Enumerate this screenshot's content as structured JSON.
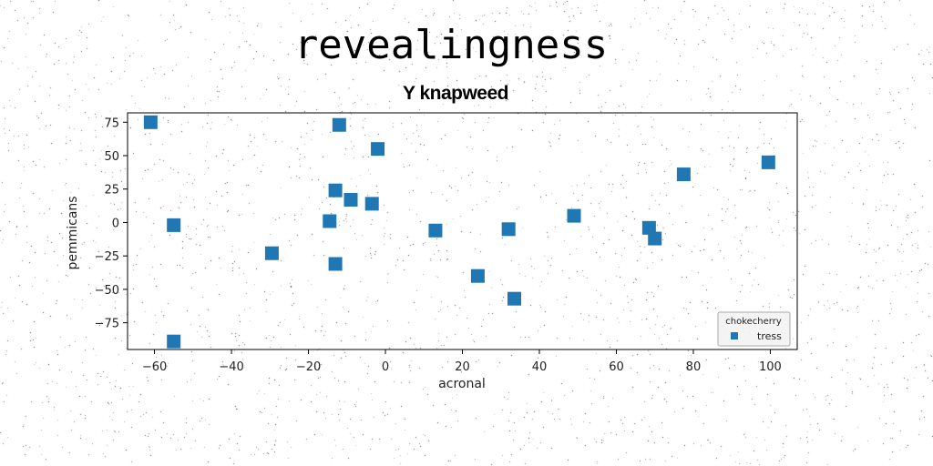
{
  "page": {
    "title": "revealingness"
  },
  "chart_data": {
    "type": "scatter",
    "title": "Y knapweed",
    "xlabel": "acronal",
    "ylabel": "pemmicans",
    "xlim": [
      -67,
      107
    ],
    "ylim": [
      -95,
      82
    ],
    "xticks": [
      -60,
      -40,
      -20,
      0,
      20,
      40,
      60,
      80,
      100
    ],
    "yticks": [
      75,
      50,
      25,
      0,
      -25,
      -50,
      -75
    ],
    "xtick_labels": [
      "−60",
      "−40",
      "−20",
      "0",
      "20",
      "40",
      "60",
      "80",
      "100"
    ],
    "ytick_labels": [
      "75",
      "50",
      "25",
      "0",
      "−25",
      "−50",
      "−75"
    ],
    "grid": false,
    "legend": {
      "title": "chokecherry",
      "placement": "bottom-right"
    },
    "series": [
      {
        "name": "tress",
        "color": "#1f77b4",
        "marker": "square",
        "points": [
          {
            "x": -61,
            "y": 75
          },
          {
            "x": -55,
            "y": -2
          },
          {
            "x": -55,
            "y": -89
          },
          {
            "x": -29.5,
            "y": -23
          },
          {
            "x": -14.5,
            "y": 1
          },
          {
            "x": -13,
            "y": 24
          },
          {
            "x": -13,
            "y": -31
          },
          {
            "x": -12,
            "y": 73
          },
          {
            "x": -9,
            "y": 17
          },
          {
            "x": -3.5,
            "y": 14
          },
          {
            "x": -2,
            "y": 55
          },
          {
            "x": 13,
            "y": -6
          },
          {
            "x": 24,
            "y": -40
          },
          {
            "x": 32,
            "y": -5
          },
          {
            "x": 33.5,
            "y": -57
          },
          {
            "x": 49,
            "y": 5
          },
          {
            "x": 68.5,
            "y": -4
          },
          {
            "x": 70,
            "y": -12
          },
          {
            "x": 77.5,
            "y": 36
          },
          {
            "x": 99.5,
            "y": 45
          }
        ]
      }
    ]
  }
}
